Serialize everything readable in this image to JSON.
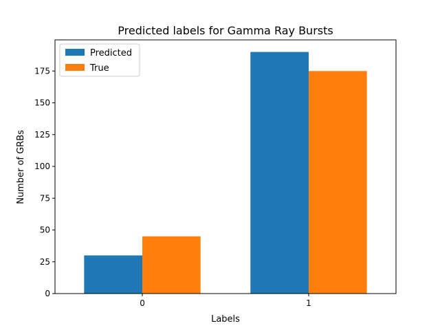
{
  "chart_data": {
    "type": "bar",
    "title": "Predicted labels for Gamma Ray Bursts",
    "xlabel": "Labels",
    "ylabel": "Number of GRBs",
    "categories": [
      "0",
      "1"
    ],
    "series": [
      {
        "name": "Predicted",
        "values": [
          30,
          190
        ],
        "color": "#1f77b4"
      },
      {
        "name": "True",
        "values": [
          45,
          175
        ],
        "color": "#ff7f0e"
      }
    ],
    "ylim": [
      0,
      199.5
    ],
    "yticks": [
      0,
      25,
      50,
      75,
      100,
      125,
      150,
      175
    ],
    "grid": false,
    "legend": "top-left"
  }
}
